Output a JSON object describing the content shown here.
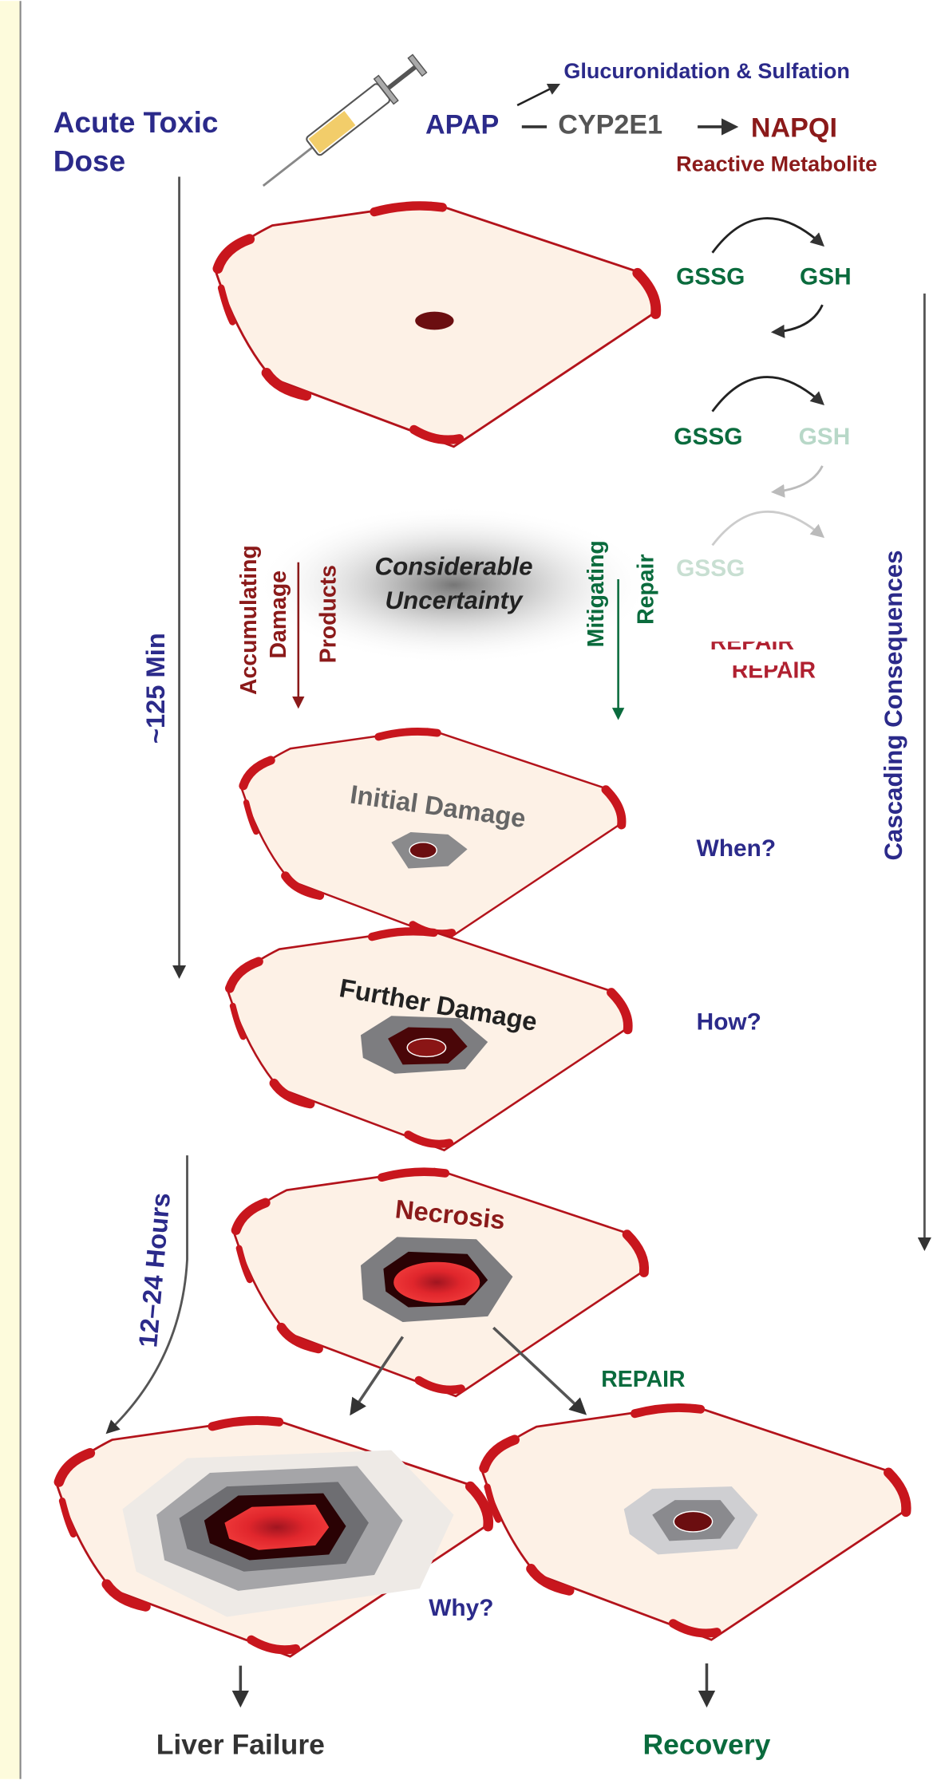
{
  "dose": [
    "Acute Toxic",
    "Dose"
  ],
  "metabolism": {
    "drug": "APAP",
    "enzyme": "CYP2E1",
    "metabolite": "NAPQI",
    "metabolite_note": "Reactive Metabolite",
    "conjugation": "Glucuronidation & Sulfation"
  },
  "glutathione": [
    {
      "oxidized": "GSSG",
      "reduced": "GSH"
    },
    {
      "oxidized": "GSSG",
      "reduced": "GSH"
    },
    {
      "oxidized": "GSSG"
    }
  ],
  "faded_repair": [
    "REPAIR",
    "REPAIR"
  ],
  "damage_products": [
    "Accumulating",
    "Damage",
    "Products"
  ],
  "uncertainty": [
    "Considerable",
    "Uncertainty"
  ],
  "mitigation": [
    "Mitigating",
    "Repair"
  ],
  "early_time": "~125 Min",
  "late_time": "12–24  Hours",
  "cascade": "Cascading Consequences",
  "stages": [
    {
      "label": "Initial Damage",
      "question": "When?"
    },
    {
      "label": "Further Damage",
      "question": "How?"
    },
    {
      "label": "Necrosis"
    }
  ],
  "repair": "REPAIR",
  "outcome_question": "Why?",
  "outcomes": [
    "Liver Failure",
    "Recovery"
  ]
}
